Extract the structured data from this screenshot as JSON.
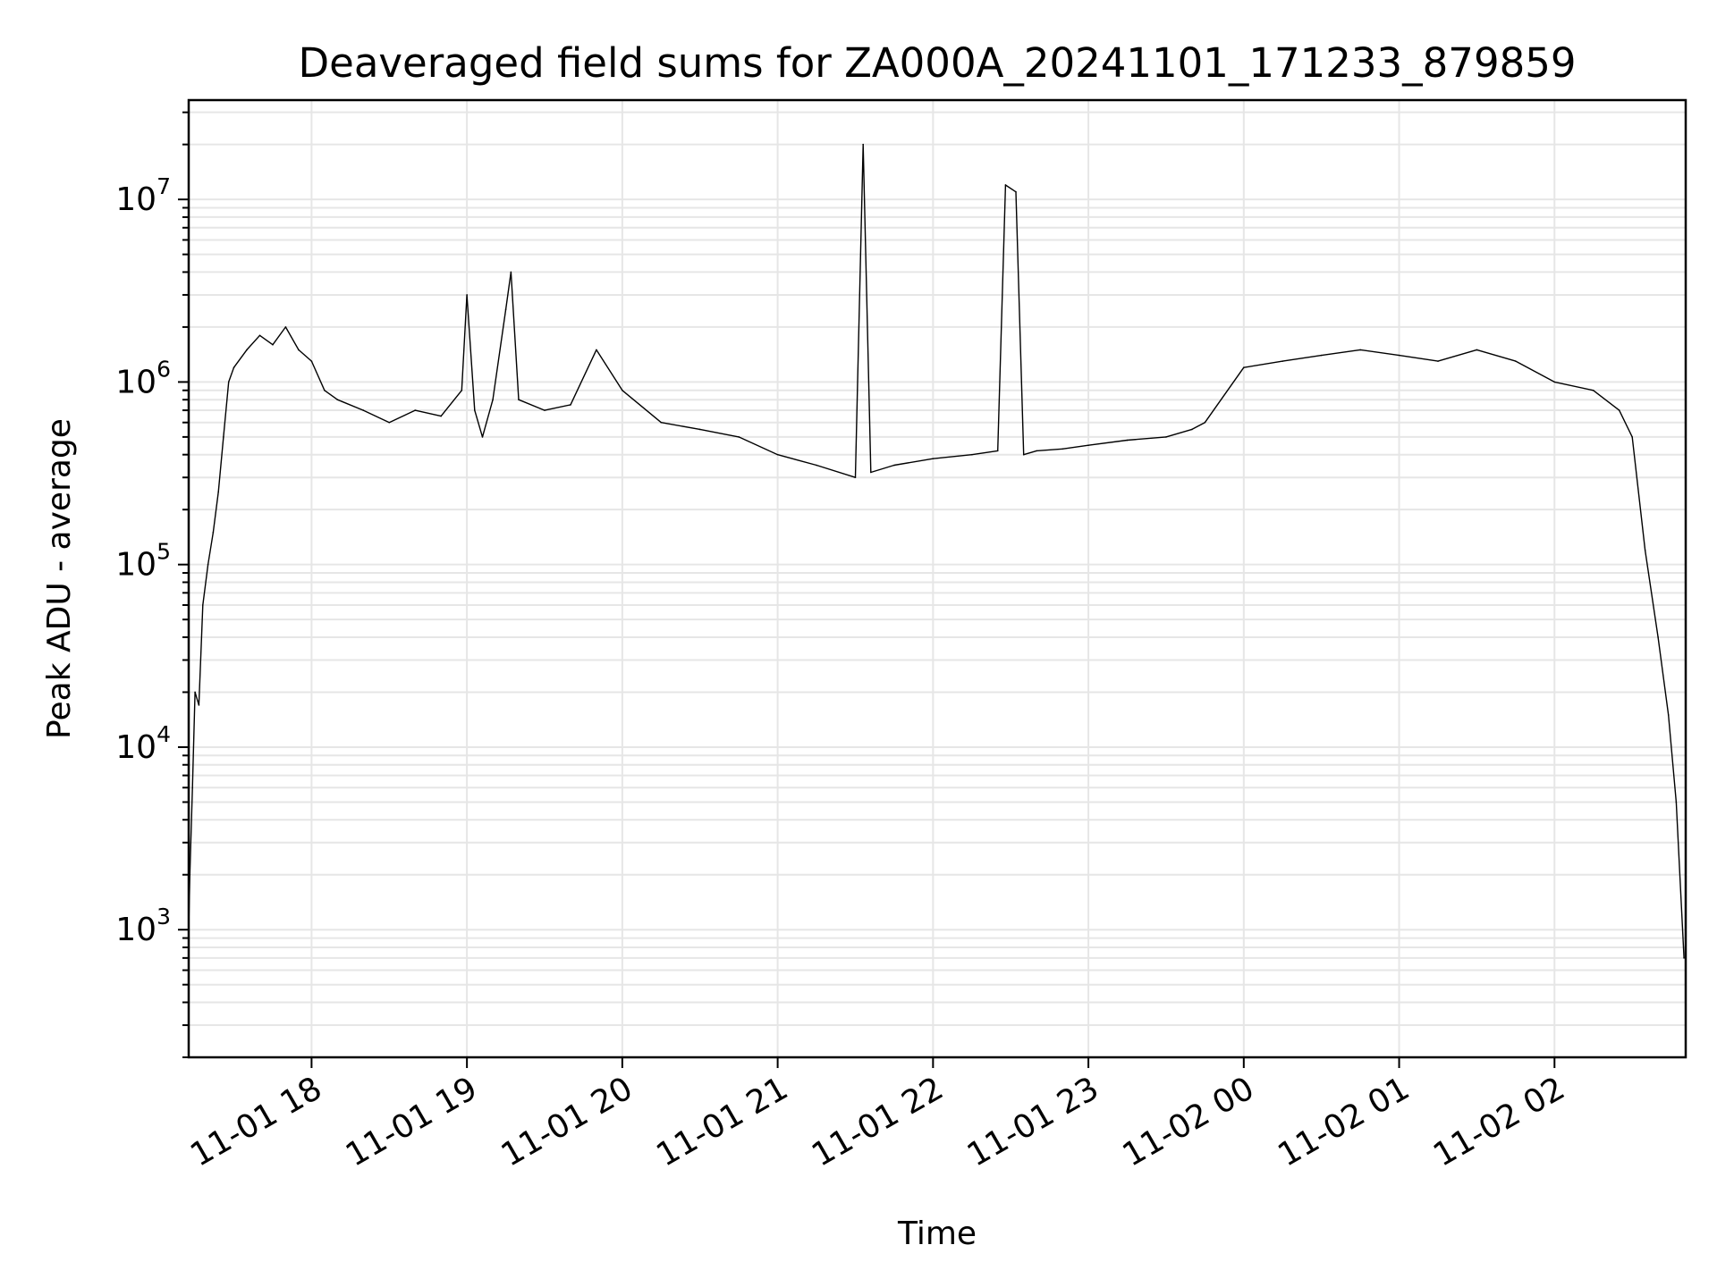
{
  "chart_data": {
    "type": "line",
    "title": "Deaveraged field sums for ZA000A_20241101_171233_879859",
    "xlabel": "Time",
    "ylabel": "Peak ADU - average",
    "yscale": "log",
    "x_type": "datetime",
    "xlim": [
      "2024-11-01T17:12:33",
      "2024-11-02T02:50:40"
    ],
    "ylim": [
      200,
      35000000
    ],
    "grid": true,
    "legend": "none",
    "line_color": "#000000",
    "x_ticks": [
      {
        "value": "2024-11-01T18:00:00",
        "label": "11-01 18"
      },
      {
        "value": "2024-11-01T19:00:00",
        "label": "11-01 19"
      },
      {
        "value": "2024-11-01T20:00:00",
        "label": "11-01 20"
      },
      {
        "value": "2024-11-01T21:00:00",
        "label": "11-01 21"
      },
      {
        "value": "2024-11-01T22:00:00",
        "label": "11-01 22"
      },
      {
        "value": "2024-11-01T23:00:00",
        "label": "11-01 23"
      },
      {
        "value": "2024-11-02T00:00:00",
        "label": "11-02 00"
      },
      {
        "value": "2024-11-02T01:00:00",
        "label": "11-02 01"
      },
      {
        "value": "2024-11-02T02:00:00",
        "label": "11-02 02"
      }
    ],
    "y_ticks": [
      {
        "value": 1000,
        "base": "10",
        "exp": "3"
      },
      {
        "value": 10000,
        "base": "10",
        "exp": "4"
      },
      {
        "value": 100000,
        "base": "10",
        "exp": "5"
      },
      {
        "value": 1000000,
        "base": "10",
        "exp": "6"
      },
      {
        "value": 10000000,
        "base": "10",
        "exp": "7"
      }
    ],
    "series": [
      {
        "values_note_excluded": true,
        "x": [
          "2024-11-01T17:12:33",
          "2024-11-01T17:13:00",
          "2024-11-01T17:14:00",
          "2024-11-01T17:15:00",
          "2024-11-01T17:16:30",
          "2024-11-01T17:18:00",
          "2024-11-01T17:20:00",
          "2024-11-01T17:22:00",
          "2024-11-01T17:24:00",
          "2024-11-01T17:26:00",
          "2024-11-01T17:28:00",
          "2024-11-01T17:30:00",
          "2024-11-01T17:35:00",
          "2024-11-01T17:40:00",
          "2024-11-01T17:45:00",
          "2024-11-01T17:50:00",
          "2024-11-01T17:55:00",
          "2024-11-01T18:00:00",
          "2024-11-01T18:05:00",
          "2024-11-01T18:10:00",
          "2024-11-01T18:20:00",
          "2024-11-01T18:30:00",
          "2024-11-01T18:40:00",
          "2024-11-01T18:50:00",
          "2024-11-01T18:58:00",
          "2024-11-01T19:00:00",
          "2024-11-01T19:03:00",
          "2024-11-01T19:06:00",
          "2024-11-01T19:10:00",
          "2024-11-01T19:15:00",
          "2024-11-01T19:17:00",
          "2024-11-01T19:20:00",
          "2024-11-01T19:30:00",
          "2024-11-01T19:40:00",
          "2024-11-01T19:50:00",
          "2024-11-01T20:00:00",
          "2024-11-01T20:15:00",
          "2024-11-01T20:30:00",
          "2024-11-01T20:45:00",
          "2024-11-01T21:00:00",
          "2024-11-01T21:15:00",
          "2024-11-01T21:30:00",
          "2024-11-01T21:33:00",
          "2024-11-01T21:36:00",
          "2024-11-01T21:45:00",
          "2024-11-01T22:00:00",
          "2024-11-01T22:15:00",
          "2024-11-01T22:25:00",
          "2024-11-01T22:28:00",
          "2024-11-01T22:32:00",
          "2024-11-01T22:35:00",
          "2024-11-01T22:40:00",
          "2024-11-01T22:50:00",
          "2024-11-01T23:00:00",
          "2024-11-01T23:15:00",
          "2024-11-01T23:30:00",
          "2024-11-01T23:40:00",
          "2024-11-01T23:45:00",
          "2024-11-02T00:00:00",
          "2024-11-02T00:15:00",
          "2024-11-02T00:30:00",
          "2024-11-02T00:45:00",
          "2024-11-02T01:00:00",
          "2024-11-02T01:15:00",
          "2024-11-02T01:30:00",
          "2024-11-02T01:45:00",
          "2024-11-02T02:00:00",
          "2024-11-02T02:15:00",
          "2024-11-02T02:25:00",
          "2024-11-02T02:30:00",
          "2024-11-02T02:35:00",
          "2024-11-02T02:40:00",
          "2024-11-02T02:44:00",
          "2024-11-02T02:47:00",
          "2024-11-02T02:50:00"
        ],
        "values": [
          1000,
          2000,
          6000,
          20000,
          17000,
          60000,
          100000,
          150000,
          250000,
          500000,
          1000000,
          1200000,
          1500000,
          1800000,
          1600000,
          2000000,
          1500000,
          1300000,
          900000,
          800000,
          700000,
          600000,
          700000,
          650000,
          900000,
          3000000,
          700000,
          500000,
          800000,
          2500000,
          4000000,
          800000,
          700000,
          750000,
          1500000,
          900000,
          600000,
          550000,
          500000,
          400000,
          350000,
          300000,
          20000000,
          320000,
          350000,
          380000,
          400000,
          420000,
          12000000,
          11000000,
          400000,
          420000,
          430000,
          450000,
          480000,
          500000,
          550000,
          600000,
          1200000,
          1300000,
          1400000,
          1500000,
          1400000,
          1300000,
          1500000,
          1300000,
          1000000,
          900000,
          700000,
          500000,
          120000,
          40000,
          15000,
          5000,
          700
        ]
      }
    ]
  }
}
